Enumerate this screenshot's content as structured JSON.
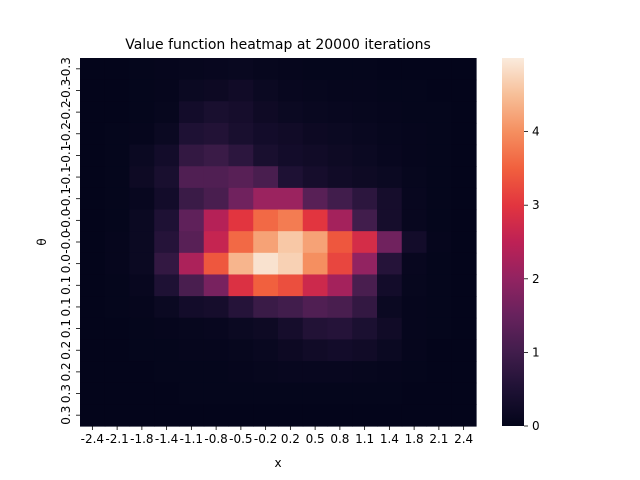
{
  "chart_data": {
    "type": "heatmap",
    "title": "Value function heatmap at 20000 iterations",
    "xlabel": "x",
    "ylabel": "θ",
    "x_tick_labels": [
      "-2.4",
      "-2.1",
      "-1.8",
      "-1.4",
      "-1.1",
      "-0.8",
      "-0.5",
      "-0.2",
      "0.2",
      "0.5",
      "0.8",
      "1.1",
      "1.4",
      "1.8",
      "2.1",
      "2.4"
    ],
    "y_tick_labels": [
      "-0.3",
      "-0.3",
      "-0.2",
      "-0.2",
      "-0.1",
      "-0.1",
      "-0.1",
      "-0.0",
      "-0.0",
      "0.0",
      "0.1",
      "0.1",
      "0.1",
      "0.2",
      "0.2",
      "0.3",
      "0.3"
    ],
    "colorbar_ticks": [
      0,
      1,
      2,
      3,
      4
    ],
    "vmin": 0,
    "vmax": 5,
    "colormap": "rocket",
    "values": [
      [
        0.02,
        0.02,
        0.03,
        0.05,
        0.08,
        0.1,
        0.12,
        0.08,
        0.05,
        0.04,
        0.03,
        0.03,
        0.02,
        0.02,
        0.02,
        0.02
      ],
      [
        0.02,
        0.02,
        0.03,
        0.05,
        0.15,
        0.18,
        0.25,
        0.15,
        0.1,
        0.08,
        0.06,
        0.05,
        0.04,
        0.03,
        0.02,
        0.02
      ],
      [
        0.02,
        0.02,
        0.04,
        0.08,
        0.3,
        0.4,
        0.35,
        0.22,
        0.15,
        0.12,
        0.1,
        0.08,
        0.06,
        0.04,
        0.03,
        0.02
      ],
      [
        0.02,
        0.03,
        0.06,
        0.15,
        0.5,
        0.55,
        0.4,
        0.3,
        0.25,
        0.18,
        0.15,
        0.12,
        0.08,
        0.06,
        0.03,
        0.02
      ],
      [
        0.02,
        0.03,
        0.15,
        0.3,
        0.8,
        0.9,
        0.7,
        0.4,
        0.3,
        0.25,
        0.2,
        0.15,
        0.1,
        0.06,
        0.03,
        0.02
      ],
      [
        0.02,
        0.03,
        0.2,
        0.4,
        1.2,
        1.2,
        1.3,
        1.1,
        0.5,
        0.35,
        0.25,
        0.2,
        0.15,
        0.08,
        0.04,
        0.02
      ],
      [
        0.02,
        0.03,
        0.1,
        0.3,
        0.9,
        1.1,
        1.6,
        2.1,
        2.1,
        1.3,
        1.0,
        0.7,
        0.35,
        0.1,
        0.04,
        0.02
      ],
      [
        0.02,
        0.04,
        0.15,
        0.5,
        1.4,
        2.4,
        3.0,
        3.6,
        3.8,
        3.0,
        2.2,
        1.0,
        0.35,
        0.1,
        0.04,
        0.02
      ],
      [
        0.02,
        0.05,
        0.15,
        0.6,
        1.3,
        2.6,
        3.6,
        4.2,
        4.6,
        4.2,
        3.4,
        2.8,
        1.6,
        0.3,
        0.05,
        0.02
      ],
      [
        0.02,
        0.05,
        0.15,
        0.8,
        2.3,
        3.4,
        4.4,
        4.9,
        4.7,
        4.0,
        3.2,
        2.0,
        0.6,
        0.1,
        0.03,
        0.02
      ],
      [
        0.02,
        0.04,
        0.1,
        0.5,
        1.1,
        1.7,
        2.9,
        3.5,
        3.3,
        2.7,
        2.2,
        1.1,
        0.3,
        0.08,
        0.03,
        0.02
      ],
      [
        0.02,
        0.03,
        0.06,
        0.15,
        0.3,
        0.35,
        0.6,
        0.9,
        1.0,
        1.2,
        1.1,
        0.8,
        0.15,
        0.06,
        0.03,
        0.02
      ],
      [
        0.02,
        0.02,
        0.03,
        0.05,
        0.08,
        0.1,
        0.15,
        0.2,
        0.35,
        0.55,
        0.6,
        0.45,
        0.25,
        0.06,
        0.03,
        0.02
      ],
      [
        0.02,
        0.02,
        0.03,
        0.04,
        0.05,
        0.06,
        0.08,
        0.12,
        0.18,
        0.25,
        0.3,
        0.25,
        0.15,
        0.05,
        0.02,
        0.02
      ],
      [
        0.02,
        0.02,
        0.02,
        0.03,
        0.03,
        0.04,
        0.05,
        0.08,
        0.1,
        0.1,
        0.1,
        0.08,
        0.06,
        0.03,
        0.02,
        0.02
      ],
      [
        0.02,
        0.02,
        0.02,
        0.02,
        0.03,
        0.03,
        0.03,
        0.04,
        0.04,
        0.04,
        0.04,
        0.03,
        0.03,
        0.02,
        0.02,
        0.02
      ],
      [
        0.02,
        0.02,
        0.02,
        0.02,
        0.02,
        0.02,
        0.02,
        0.02,
        0.02,
        0.02,
        0.02,
        0.02,
        0.02,
        0.02,
        0.02,
        0.02
      ]
    ]
  }
}
